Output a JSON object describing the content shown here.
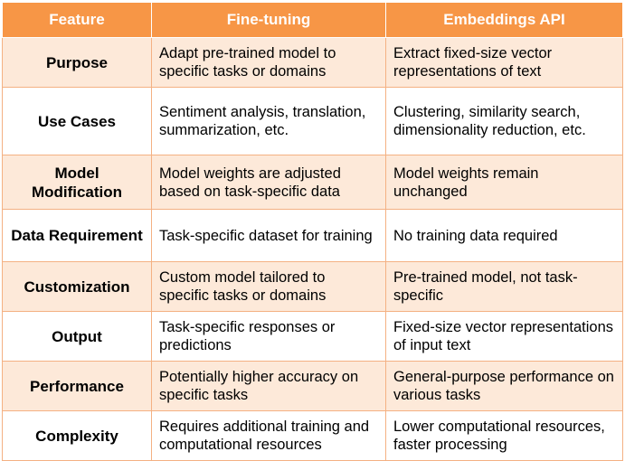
{
  "table": {
    "headers": [
      "Feature",
      "Fine-tuning",
      "Embeddings API"
    ],
    "rows": [
      {
        "feature": "Purpose",
        "fine_tuning": "Adapt pre-trained model to specific tasks or domains",
        "embeddings": "Extract fixed-size vector representations of text"
      },
      {
        "feature": "Use Cases",
        "fine_tuning": "Sentiment analysis, translation, summarization, etc.",
        "embeddings": "Clustering, similarity search, dimensionality reduction, etc."
      },
      {
        "feature": "Model Modification",
        "fine_tuning": "Model weights are adjusted based on task-specific data",
        "embeddings": "Model weights remain unchanged"
      },
      {
        "feature": "Data Requirement",
        "fine_tuning": "Task-specific dataset for training",
        "embeddings": "No training data required"
      },
      {
        "feature": "Customization",
        "fine_tuning": "Custom model tailored to specific tasks or domains",
        "embeddings": "Pre-trained model, not task-specific"
      },
      {
        "feature": "Output",
        "fine_tuning": "Task-specific responses or predictions",
        "embeddings": "Fixed-size vector representations of input text"
      },
      {
        "feature": "Performance",
        "fine_tuning": "Potentially higher accuracy on specific tasks",
        "embeddings": "General-purpose performance on various tasks"
      },
      {
        "feature": "Complexity",
        "fine_tuning": "Requires additional training and computational resources",
        "embeddings": "Lower computational resources, faster processing"
      }
    ]
  }
}
